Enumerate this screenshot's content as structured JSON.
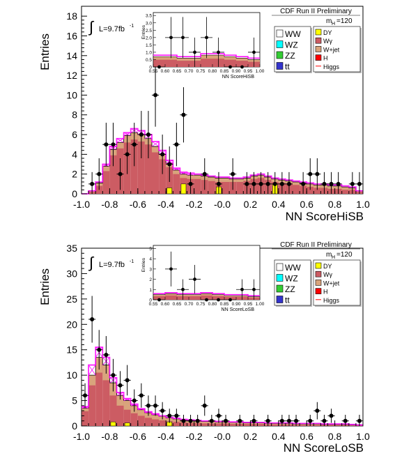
{
  "chart_data": [
    {
      "type": "bar",
      "panel": "top",
      "title": "CDF Run II Preliminary",
      "xlabel": "NN ScoreHiSB",
      "ylabel": "Entries",
      "xlim": [
        -1.0,
        1.0
      ],
      "ylim": [
        0,
        19
      ],
      "yticks": [
        0,
        2,
        4,
        6,
        8,
        10,
        12,
        14,
        16,
        18
      ],
      "xticks": [
        -1.0,
        -0.8,
        -0.6,
        -0.4,
        -0.2,
        -0.0,
        0.2,
        0.4,
        0.6,
        0.8,
        1.0
      ],
      "xtick_labels": [
        "-1.0",
        "-0.8",
        "-0.6",
        "-0.4",
        "-0.2",
        "-0.0",
        "0.2",
        "0.4",
        "0.6",
        "0.8",
        "1.0"
      ],
      "lumi": "L=9.7fb",
      "lumi_sup": "-1",
      "mass_label": "m",
      "mass_sub": "H",
      "mass_value": "=120",
      "legend_left": [
        "WW",
        "WZ",
        "ZZ",
        "tt"
      ],
      "legend_right": [
        "DY",
        "Wγ",
        "W+jet",
        "H",
        "Higgs"
      ],
      "stack_total": [
        0,
        0.3,
        1.1,
        2.8,
        4.5,
        5.2,
        5.9,
        6.2,
        6.0,
        5.6,
        4.8,
        4.0,
        3.1,
        2.4,
        2.0,
        1.9,
        1.9,
        1.8,
        1.7,
        1.6,
        1.6,
        1.5,
        1.5,
        1.6,
        1.8,
        1.9,
        1.7,
        1.5,
        1.4,
        1.3,
        1.2,
        1.1,
        1.0,
        0.9,
        0.9,
        0.8,
        0.8,
        0.7,
        0.6,
        0.3
      ],
      "wjet_component": [
        0,
        0.1,
        0.3,
        0.5,
        0.6,
        0.6,
        0.7,
        0.7,
        0.7,
        0.6,
        0.6,
        0.5,
        0.4,
        0.4,
        0.4,
        0.4,
        0.4,
        0.4,
        0.4,
        0.4,
        0.4,
        0.3,
        0.3,
        0.3,
        0.3,
        0.3,
        0.3,
        0.3,
        0.3,
        0.3,
        0.3,
        0.3,
        0.3,
        0.3,
        0.3,
        0.3,
        0.3,
        0.3,
        0.2,
        0.1
      ],
      "dy_component": [
        0,
        0,
        0,
        0,
        0,
        0,
        0,
        0,
        0,
        0,
        0,
        0,
        0.6,
        0,
        1.0,
        0,
        0,
        0,
        0,
        0.7,
        0,
        0,
        0,
        0,
        0,
        0,
        0,
        1.0,
        0,
        0,
        0,
        0,
        0,
        0,
        0,
        0,
        0,
        0,
        0,
        0
      ],
      "higgs_signal": [
        0,
        0.3,
        1.2,
        3.0,
        4.8,
        5.6,
        6.2,
        6.6,
        6.4,
        6.0,
        5.3,
        4.4,
        3.4,
        2.6,
        2.2,
        2.1,
        2.0,
        1.9,
        1.8,
        1.7,
        1.7,
        1.6,
        1.6,
        1.7,
        1.9,
        2.0,
        1.8,
        1.6,
        1.5,
        1.4,
        1.3,
        1.2,
        1.1,
        1.0,
        1.0,
        0.9,
        0.9,
        0.8,
        0.7,
        0.3
      ],
      "data_points": {
        "x": [
          -0.925,
          -0.875,
          -0.825,
          -0.775,
          -0.725,
          -0.675,
          -0.625,
          -0.575,
          -0.525,
          -0.475,
          -0.425,
          -0.375,
          -0.325,
          -0.275,
          -0.225,
          -0.125,
          -0.025,
          0.075,
          0.175,
          0.225,
          0.275,
          0.325,
          0.375,
          0.425,
          0.475,
          0.575,
          0.625,
          0.675,
          0.725,
          0.775,
          0.825,
          0.925,
          0.975
        ],
        "y": [
          1,
          2,
          5,
          5,
          2,
          4,
          5,
          6,
          6,
          10,
          4,
          3,
          5,
          8,
          1,
          2,
          1,
          2,
          1,
          1,
          1,
          1,
          1,
          1,
          1,
          1,
          2,
          2,
          1,
          1,
          1,
          1,
          1
        ],
        "err": [
          1.2,
          1.6,
          2.2,
          2.2,
          1.6,
          2.0,
          2.2,
          2.4,
          2.4,
          3.2,
          2.0,
          1.8,
          2.2,
          2.8,
          1.2,
          1.6,
          1.2,
          1.6,
          1.2,
          1.2,
          1.2,
          1.2,
          1.2,
          1.2,
          1.2,
          1.2,
          1.6,
          1.6,
          1.2,
          1.2,
          1.2,
          1.2,
          1.2
        ]
      },
      "inset": {
        "xlabel": "NN ScoreHiSB",
        "ylabel": "Entries",
        "xlim": [
          0.55,
          1.0
        ],
        "ylim": [
          0,
          3.7
        ],
        "yticks": [
          0,
          0.5,
          1,
          1.5,
          2,
          2.5,
          3,
          3.5
        ],
        "ytick_labels": [
          "0",
          "0.5",
          "1.0",
          "1.5",
          "2.0",
          "2.5",
          "3.0",
          "3.5"
        ],
        "xticks": [
          0.55,
          0.6,
          0.65,
          0.7,
          0.75,
          0.8,
          0.85,
          0.9,
          0.95,
          1.0
        ],
        "xtick_labels": [
          "0.55",
          "0.60",
          "0.65",
          "0.70",
          "0.75",
          "0.80",
          "0.85",
          "0.90",
          "0.95",
          "1.00"
        ],
        "stack_total": [
          0.7,
          0.7,
          0.6,
          0.6,
          0.8,
          0.8,
          0.7,
          0.6,
          0.5
        ],
        "higgs_signal": [
          0.8,
          0.8,
          0.7,
          0.7,
          0.9,
          0.9,
          0.8,
          0.7,
          0.6
        ],
        "data_x": [
          0.575,
          0.625,
          0.675,
          0.725,
          0.775,
          0.825,
          0.875,
          0.925,
          0.975
        ],
        "data_y": [
          0,
          2,
          2,
          1,
          2,
          1,
          0,
          0,
          1
        ],
        "data_err": [
          0,
          1.4,
          1.4,
          1.0,
          1.4,
          1.0,
          0,
          0,
          1.0
        ]
      }
    },
    {
      "type": "bar",
      "panel": "bottom",
      "title": "CDF Run II Preliminary",
      "xlabel": "NN ScoreLoSB",
      "ylabel": "Entries",
      "xlim": [
        -1.0,
        1.0
      ],
      "ylim": [
        0,
        35
      ],
      "yticks": [
        0,
        5,
        10,
        15,
        20,
        25,
        30,
        35
      ],
      "xticks": [
        -1.0,
        -0.8,
        -0.6,
        -0.4,
        -0.2,
        -0.0,
        0.2,
        0.4,
        0.6,
        0.8,
        1.0
      ],
      "xtick_labels": [
        "-1.0",
        "-0.8",
        "-0.6",
        "-0.4",
        "-0.2",
        "-0.0",
        "0.2",
        "0.4",
        "0.6",
        "0.8",
        "1.0"
      ],
      "lumi": "L=9.7fb",
      "lumi_sup": "-1",
      "mass_label": "m",
      "mass_sub": "H",
      "mass_value": "=120",
      "legend_left": [
        "WW",
        "WZ",
        "ZZ",
        "tt"
      ],
      "legend_right": [
        "DY",
        "Wγ",
        "W+jet",
        "H",
        "Higgs"
      ],
      "stack_total": [
        3.5,
        10.0,
        13.5,
        12.0,
        8.5,
        6.0,
        5.0,
        4.0,
        3.2,
        2.6,
        2.2,
        1.9,
        1.6,
        1.4,
        1.2,
        1.1,
        1.0,
        0.9,
        0.9,
        0.8,
        0.8,
        0.7,
        0.7,
        0.6,
        0.6,
        0.6,
        0.5,
        0.5,
        0.5,
        0.5,
        0.4,
        0.4,
        0.4,
        0.4,
        0.3,
        0.3,
        0.3,
        0.3,
        0.2,
        0.2
      ],
      "wjet_component": [
        0.6,
        2.0,
        3.0,
        3.0,
        2.5,
        2.0,
        1.8,
        1.5,
        1.2,
        1.0,
        0.9,
        0.8,
        0.7,
        0.6,
        0.5,
        0.5,
        0.4,
        0.4,
        0.4,
        0.3,
        0.3,
        0.3,
        0.3,
        0.2,
        0.2,
        0.2,
        0.2,
        0.2,
        0.2,
        0.2,
        0.2,
        0.2,
        0.2,
        0.2,
        0.1,
        0.1,
        0.1,
        0.1,
        0.1,
        0.1
      ],
      "dy_component": [
        0,
        0,
        0,
        0,
        0.8,
        0,
        0.6,
        0,
        0,
        0,
        0,
        0,
        0.8,
        0,
        0,
        0,
        0,
        0,
        0,
        0,
        0,
        0,
        0,
        0,
        0,
        0,
        0,
        0,
        0,
        0,
        0,
        0,
        0,
        0,
        0,
        0,
        0,
        0,
        0,
        0
      ],
      "higgs_signal": [
        3.8,
        12.0,
        15.5,
        13.5,
        9.5,
        6.6,
        5.4,
        4.3,
        3.4,
        2.8,
        2.4,
        2.0,
        1.7,
        1.5,
        1.3,
        1.2,
        1.1,
        1.0,
        1.0,
        0.9,
        0.9,
        0.8,
        0.8,
        0.7,
        0.7,
        0.7,
        0.6,
        0.6,
        0.6,
        0.6,
        0.5,
        0.5,
        0.5,
        0.5,
        0.4,
        0.4,
        0.4,
        0.4,
        0.3,
        0.2
      ],
      "data_points": {
        "x": [
          -0.975,
          -0.925,
          -0.875,
          -0.825,
          -0.775,
          -0.725,
          -0.675,
          -0.625,
          -0.575,
          -0.525,
          -0.475,
          -0.425,
          -0.375,
          -0.325,
          -0.275,
          -0.225,
          -0.175,
          -0.125,
          -0.075,
          -0.025,
          0.025,
          0.125,
          0.225,
          0.325,
          0.425,
          0.475,
          0.525,
          0.625,
          0.675,
          0.725,
          0.775,
          0.875,
          0.975
        ],
        "y": [
          6,
          21,
          15,
          14,
          10,
          8,
          9,
          5,
          6,
          4,
          4,
          3,
          2,
          2,
          1,
          1,
          1,
          4,
          1,
          2,
          1,
          1,
          1,
          1,
          1,
          1,
          1,
          1,
          3,
          1,
          2,
          1,
          1
        ],
        "err": [
          2.4,
          4.6,
          3.9,
          3.7,
          3.2,
          2.8,
          3.0,
          2.2,
          2.4,
          2.0,
          2.0,
          1.7,
          1.4,
          1.4,
          1.2,
          1.2,
          1.2,
          2.0,
          1.2,
          1.4,
          1.2,
          1.2,
          1.2,
          1.2,
          1.2,
          1.2,
          1.2,
          1.2,
          1.7,
          1.2,
          1.4,
          1.2,
          1.2
        ]
      },
      "inset": {
        "xlabel": "NN ScoreLoSB",
        "ylabel": "Entries",
        "xlim": [
          0.55,
          1.0
        ],
        "ylim": [
          0,
          5.3
        ],
        "yticks": [
          0,
          1,
          2,
          3,
          4,
          5
        ],
        "ytick_labels": [
          "0",
          "1",
          "2",
          "3",
          "4",
          "5"
        ],
        "xticks": [
          0.55,
          0.6,
          0.65,
          0.7,
          0.75,
          0.8,
          0.85,
          0.9,
          0.95,
          1.0
        ],
        "xtick_labels": [
          "0.55",
          "0.60",
          "0.65",
          "0.70",
          "0.75",
          "0.80",
          "0.85",
          "0.90",
          "0.95",
          "1.00"
        ],
        "stack_total": [
          0.5,
          0.6,
          0.5,
          0.5,
          0.6,
          0.5,
          0.4,
          0.4,
          0.3
        ],
        "higgs_signal": [
          0.6,
          0.7,
          0.6,
          0.6,
          0.7,
          0.6,
          0.5,
          0.5,
          0.4
        ],
        "data_x": [
          0.575,
          0.625,
          0.675,
          0.725,
          0.775,
          0.825,
          0.875,
          0.925,
          0.975
        ],
        "data_y": [
          0,
          3,
          1,
          2,
          0,
          0,
          0,
          1,
          1
        ],
        "data_err": [
          0,
          1.7,
          1.0,
          1.4,
          0,
          0,
          0,
          1.0,
          1.0
        ]
      }
    }
  ],
  "colors": {
    "wgamma": "#cc5c63",
    "wjet": "#d9a47c",
    "dy": "#ffff00",
    "higgs": "#ff00ff",
    "ww": "#ffffff",
    "wz": "#00ffff",
    "zz": "#33cc33",
    "tt": "#3333cc",
    "h": "#ff0000",
    "data": "#000000"
  }
}
